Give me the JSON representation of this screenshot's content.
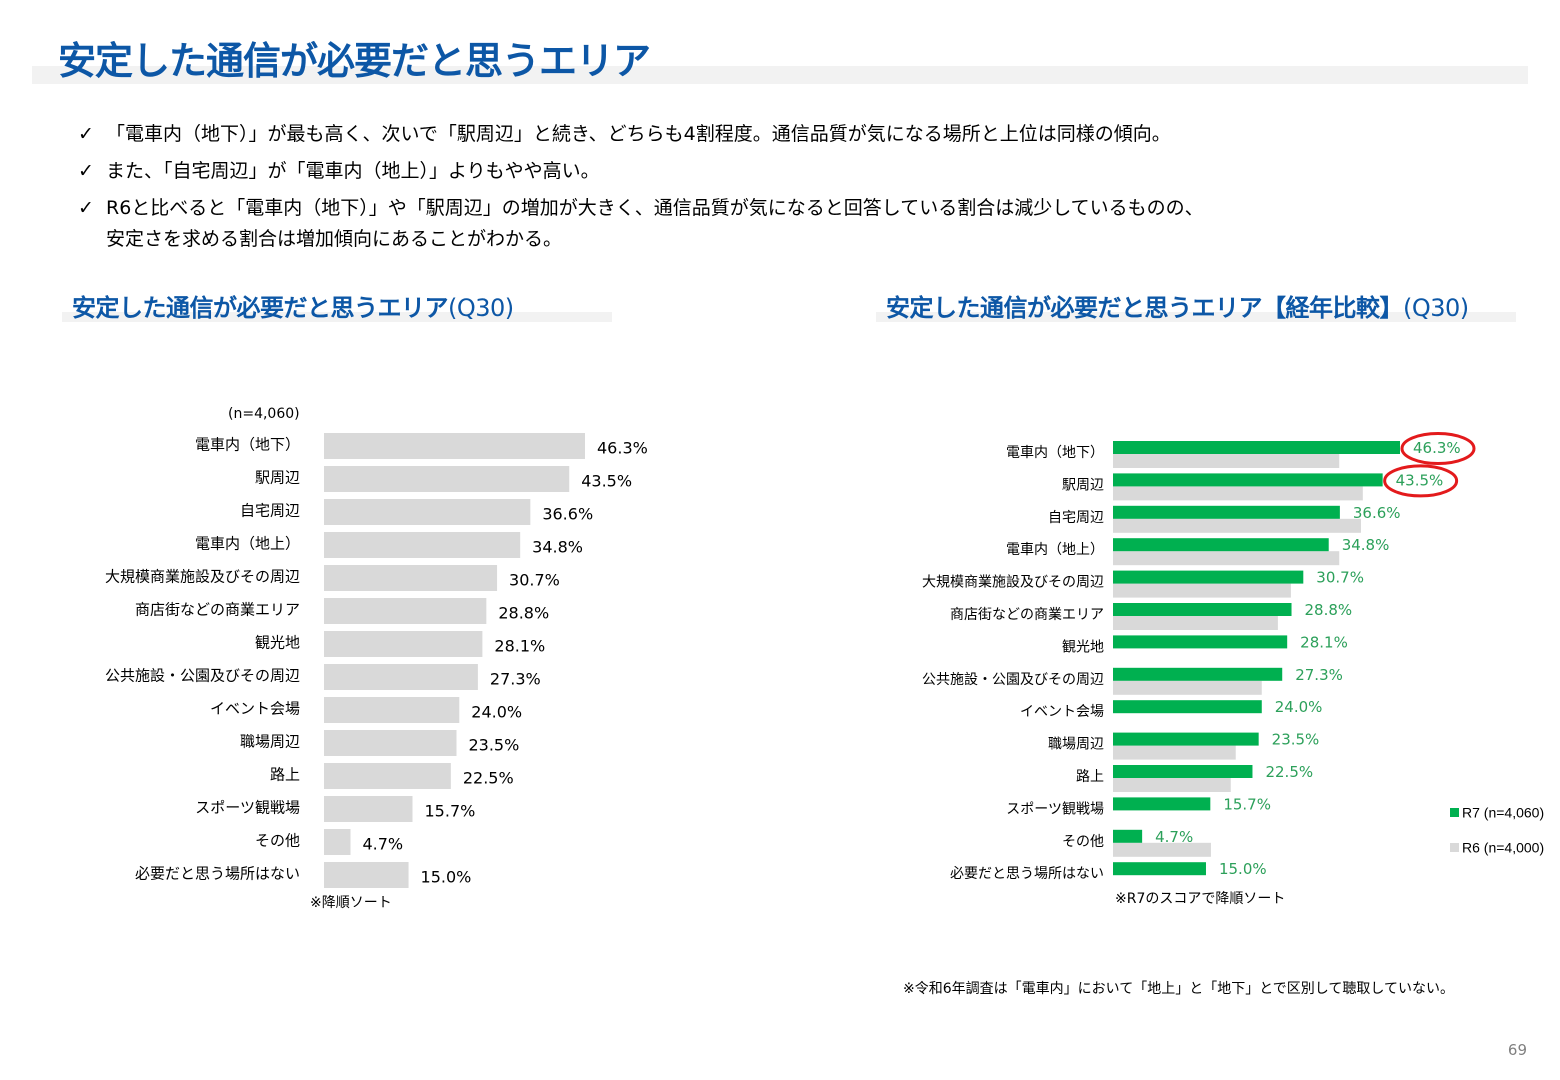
{
  "page": {
    "title": "安定した通信が必要だと思うエリア",
    "page_number": "69",
    "bullets": [
      "「電車内（地下）」が最も高く、次いで「駅周辺」と続き、どちらも4割程度。通信品質が気になる場所と上位は同様の傾向。",
      "また、「自宅周辺」が「電車内（地上）」よりもやや高い。",
      "R6と比べると「電車内（地下）」や「駅周辺」の増加が大きく、通信品質が気になると回答している割合は減少しているものの、",
      "安定さを求める割合は増加傾向にあることがわかる。"
    ],
    "check_icon": "✓",
    "footnote": "※令和6年調査は「電車内」において「地上」と「地下」とで区別して聴取していない。"
  },
  "left_chart": {
    "title": "安定した通信が必要だと思うエリア",
    "title_suffix": "(Q30)",
    "sample_size": "(n=4,060)",
    "sort_note": "※降順ソート"
  },
  "right_chart": {
    "title": "安定した通信が必要だと思うエリア【経年比較】",
    "title_suffix": "(Q30)",
    "sort_note": "※R7のスコアで降順ソート",
    "legend": [
      {
        "label": "R7",
        "n": "(n=4,060)",
        "color": "#00b050"
      },
      {
        "label": "R6",
        "n": "(n=4,000)",
        "color": "#d9d9d9"
      }
    ],
    "highlighted": [
      "電車内（地下）",
      "駅周辺"
    ],
    "highlight_color": "#e31a1c"
  },
  "chart_data": [
    {
      "type": "bar",
      "orientation": "horizontal",
      "title": "安定した通信が必要だと思うエリア(Q30)",
      "xlabel": "",
      "ylabel": "",
      "unit": "%",
      "xlim": [
        0,
        50
      ],
      "grid": false,
      "categories": [
        "電車内（地下）",
        "駅周辺",
        "自宅周辺",
        "電車内（地上）",
        "大規模商業施設及びその周辺",
        "商店街などの商業エリア",
        "観光地",
        "公共施設・公園及びその周辺",
        "イベント会場",
        "職場周辺",
        "路上",
        "スポーツ観戦場",
        "その他",
        "必要だと思う場所はない"
      ],
      "series": [
        {
          "name": "(n=4,060)",
          "color": "#d9d9d9",
          "values": [
            46.3,
            43.5,
            36.6,
            34.8,
            30.7,
            28.8,
            28.1,
            27.3,
            24.0,
            23.5,
            22.5,
            15.7,
            4.7,
            15.0
          ],
          "labels": [
            "46.3%",
            "43.5%",
            "36.6%",
            "34.8%",
            "30.7%",
            "28.8%",
            "28.1%",
            "27.3%",
            "24.0%",
            "23.5%",
            "22.5%",
            "15.7%",
            "4.7%",
            "15.0%"
          ]
        }
      ]
    },
    {
      "type": "bar",
      "orientation": "horizontal",
      "title": "安定した通信が必要だと思うエリア【経年比較】(Q30)",
      "xlabel": "",
      "ylabel": "",
      "unit": "%",
      "xlim": [
        0,
        50
      ],
      "grid": false,
      "legend_position": "right",
      "categories": [
        "電車内（地下）",
        "駅周辺",
        "自宅周辺",
        "電車内（地上）",
        "大規模商業施設及びその周辺",
        "商店街などの商業エリア",
        "観光地",
        "公共施設・公園及びその周辺",
        "イベント会場",
        "職場周辺",
        "路上",
        "スポーツ観戦場",
        "その他",
        "必要だと思う場所はない"
      ],
      "series": [
        {
          "name": "R7 (n=4,060)",
          "color": "#00b050",
          "values": [
            46.3,
            43.5,
            36.6,
            34.8,
            30.7,
            28.8,
            28.1,
            27.3,
            24.0,
            23.5,
            22.5,
            15.7,
            4.7,
            15.0
          ],
          "labels": [
            "46.3%",
            "43.5%",
            "36.6%",
            "34.8%",
            "30.7%",
            "28.8%",
            "28.1%",
            "27.3%",
            "24.0%",
            "23.5%",
            "22.5%",
            "15.7%",
            "4.7%",
            "15.0%"
          ]
        },
        {
          "name": "R6 (n=4,000)",
          "color": "#d9d9d9",
          "values": [
            36.5,
            40.3,
            40.0,
            36.5,
            28.7,
            26.6,
            null,
            24.0,
            null,
            19.8,
            19.0,
            null,
            15.8,
            null
          ]
        }
      ]
    }
  ]
}
